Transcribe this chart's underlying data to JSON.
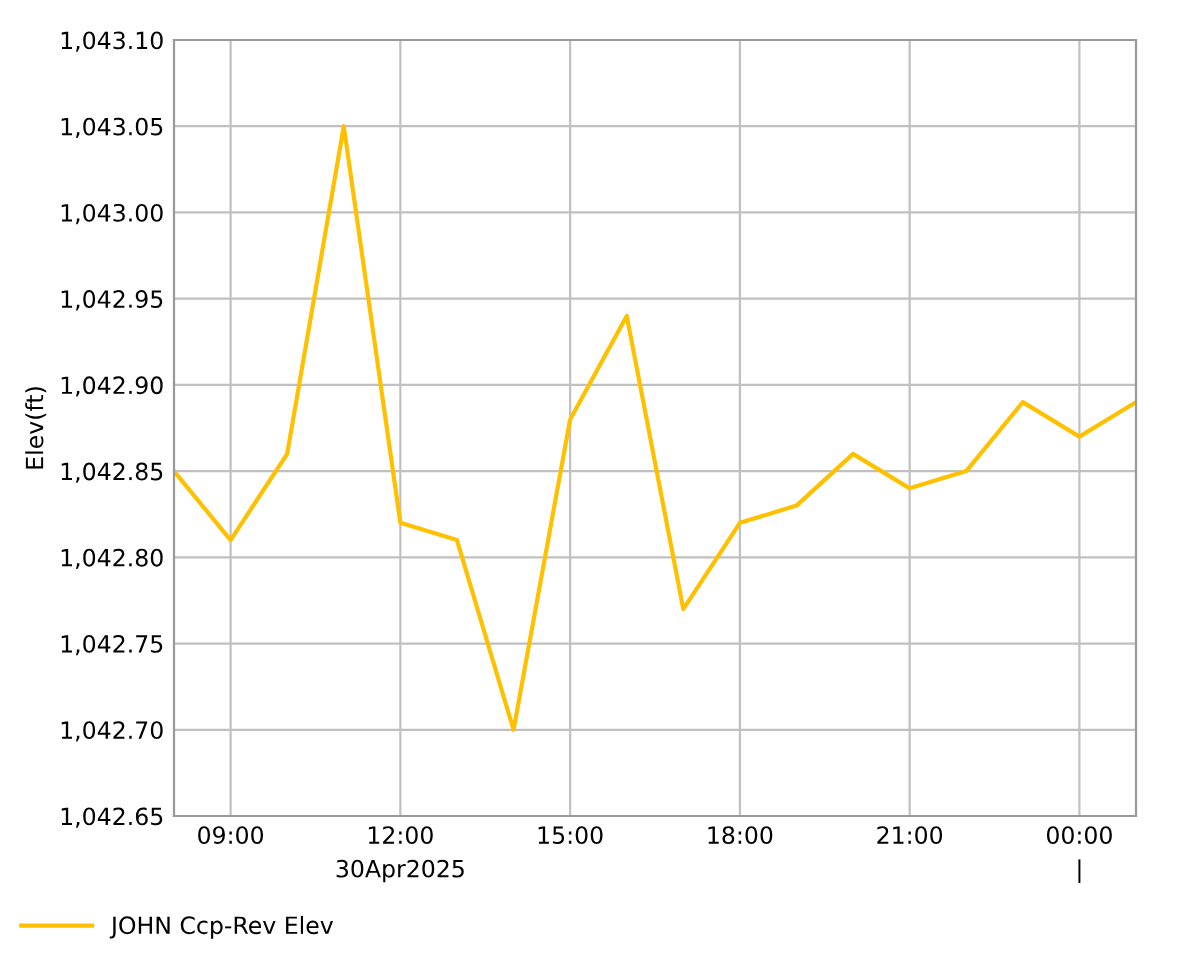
{
  "chart_data": {
    "type": "line",
    "ylabel": "Elev(ft)",
    "x": [
      "2025-04-30T08:00",
      "2025-04-30T09:00",
      "2025-04-30T10:00",
      "2025-04-30T11:00",
      "2025-04-30T12:00",
      "2025-04-30T13:00",
      "2025-04-30T14:00",
      "2025-04-30T15:00",
      "2025-04-30T16:00",
      "2025-04-30T17:00",
      "2025-04-30T18:00",
      "2025-04-30T19:00",
      "2025-04-30T20:00",
      "2025-04-30T21:00",
      "2025-04-30T22:00",
      "2025-04-30T23:00",
      "2025-05-01T00:00",
      "2025-05-01T01:00"
    ],
    "series": [
      {
        "name": "JOHN Ccp-Rev Elev",
        "color": "#ffc000",
        "values": [
          1042.85,
          1042.81,
          1042.86,
          1043.05,
          1042.82,
          1042.81,
          1042.7,
          1042.88,
          1042.94,
          1042.77,
          1042.82,
          1042.83,
          1042.86,
          1042.84,
          1042.85,
          1042.89,
          1042.87,
          1042.89
        ]
      }
    ],
    "xlim": [
      "2025-04-30T08:00",
      "2025-05-01T01:00"
    ],
    "xticks": [
      {
        "value": "2025-04-30T09:00",
        "label": "09:00"
      },
      {
        "value": "2025-04-30T12:00",
        "label": "12:00\n30Apr2025"
      },
      {
        "value": "2025-04-30T15:00",
        "label": "15:00"
      },
      {
        "value": "2025-04-30T18:00",
        "label": "18:00"
      },
      {
        "value": "2025-04-30T21:00",
        "label": "21:00"
      },
      {
        "value": "2025-05-01T00:00",
        "label": "00:00\n|"
      }
    ],
    "ylim": [
      1042.65,
      1043.1
    ],
    "yticks": [
      {
        "value": 1042.65,
        "label": "1,042.65"
      },
      {
        "value": 1042.7,
        "label": "1,042.70"
      },
      {
        "value": 1042.75,
        "label": "1,042.75"
      },
      {
        "value": 1042.8,
        "label": "1,042.80"
      },
      {
        "value": 1042.85,
        "label": "1,042.85"
      },
      {
        "value": 1042.9,
        "label": "1,042.90"
      },
      {
        "value": 1042.95,
        "label": "1,042.95"
      },
      {
        "value": 1043.0,
        "label": "1,043.00"
      },
      {
        "value": 1043.05,
        "label": "1,043.05"
      },
      {
        "value": 1043.1,
        "label": "1,043.10"
      }
    ],
    "grid": true,
    "legend": "bottom left",
    "marker": "none",
    "line_style": "solid"
  }
}
